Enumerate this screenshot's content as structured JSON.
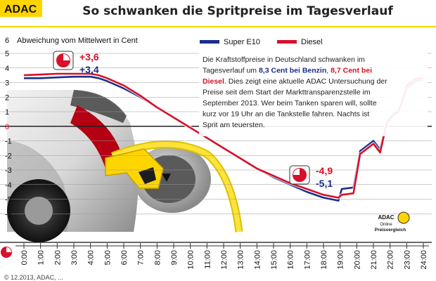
{
  "header": {
    "logo": "ADAC",
    "title": "So schwanken die Spritpreise im Tagesverlauf"
  },
  "colors": {
    "blue": "#1a2f8a",
    "red": "#d8102a",
    "yellow": "#ffd500",
    "grid": "#555555"
  },
  "legend": {
    "items": [
      {
        "name": "Super E10",
        "color": "#1a2f8a"
      },
      {
        "name": "Diesel",
        "color": "#d8102a"
      }
    ]
  },
  "info_text": {
    "lines": [
      [
        {
          "t": "Die Kraftstoffpreise in Deutschland schwanken im",
          "c": "#222222",
          "b": false
        }
      ],
      [
        {
          "t": "Tagesverlauf um ",
          "c": "#222222",
          "b": false
        },
        {
          "t": "8,3 Cent bei Benzin",
          "c": "#1a2f8a",
          "b": true
        },
        {
          "t": ", ",
          "c": "#222222",
          "b": false
        },
        {
          "t": "8,7 Cent bei",
          "c": "#d8102a",
          "b": true
        }
      ],
      [
        {
          "t": "Diesel",
          "c": "#d8102a",
          "b": true
        },
        {
          "t": ". Dies zeigt eine aktuelle ADAC Untersuchung der",
          "c": "#222222",
          "b": false
        }
      ],
      [
        {
          "t": "Preise seit dem Start der Markttransparenzstelle im",
          "c": "#222222",
          "b": false
        }
      ],
      [
        {
          "t": "September 2013. Wer beim Tanken sparen will, sollte",
          "c": "#222222",
          "b": false
        }
      ],
      [
        {
          "t": "kurz vor 19 Uhr an die Tankstelle fahren. Nachts ist",
          "c": "#222222",
          "b": false
        }
      ],
      [
        {
          "t": "Sprit am teuersten.",
          "c": "#222222",
          "b": false
        }
      ]
    ]
  },
  "callouts": [
    {
      "id": "max",
      "red_value": "+3,6",
      "blue_value": "+3,4"
    },
    {
      "id": "min",
      "red_value": "-4,9",
      "blue_value": "-5,1"
    }
  ],
  "brand_badge": {
    "line1": "ADAC",
    "line2": "Online",
    "line3": "Preisvergleich"
  },
  "footer": "© 12.2013, ADAC, ...",
  "chart_data": {
    "type": "line",
    "title": "So schwanken die Spritpreise im Tagesverlauf",
    "ylabel": "Abweichung vom Mittelwert in Cent",
    "xlabel": "",
    "ylim": [
      -6,
      6
    ],
    "yticks": [
      6,
      5,
      4,
      3,
      2,
      1,
      0,
      -1,
      -2,
      -3,
      -4,
      -5,
      -6
    ],
    "xlim": [
      0,
      24
    ],
    "xticks": [
      "0:00",
      "1:00",
      "2:00",
      "3:00",
      "4:00",
      "5:00",
      "6:00",
      "7:00",
      "8:00",
      "9:00",
      "10:00",
      "11:00",
      "12:00",
      "13:00",
      "14:00",
      "15:00",
      "16:00",
      "17:00",
      "18:00",
      "19:00",
      "20:00",
      "21:00",
      "22:00",
      "23:00",
      "24:00"
    ],
    "grid": true,
    "legend_position": "top-right",
    "series": [
      {
        "name": "Super E10",
        "color": "#1a2f8a",
        "points": [
          [
            0,
            3.3
          ],
          [
            1,
            3.3
          ],
          [
            2,
            3.35
          ],
          [
            3,
            3.4
          ],
          [
            4,
            3.4
          ],
          [
            4.5,
            3.3
          ],
          [
            5,
            3.1
          ],
          [
            6,
            2.6
          ],
          [
            7,
            2.0
          ],
          [
            8,
            1.3
          ],
          [
            9,
            0.6
          ],
          [
            10,
            -0.1
          ],
          [
            11,
            -0.8
          ],
          [
            12,
            -1.5
          ],
          [
            13,
            -2.2
          ],
          [
            14,
            -2.9
          ],
          [
            15,
            -3.5
          ],
          [
            16,
            -4.0
          ],
          [
            17,
            -4.5
          ],
          [
            18,
            -4.9
          ],
          [
            18.9,
            -5.1
          ],
          [
            19.1,
            -4.3
          ],
          [
            19.8,
            -4.2
          ],
          [
            20.2,
            -1.7
          ],
          [
            21,
            -1.0
          ],
          [
            21.4,
            -1.6
          ],
          [
            21.8,
            0.3
          ],
          [
            22.2,
            0.9
          ],
          [
            22.5,
            1.0
          ],
          [
            22.9,
            2.2
          ],
          [
            23,
            2.6
          ],
          [
            23.5,
            3.1
          ],
          [
            24,
            3.2
          ]
        ]
      },
      {
        "name": "Diesel",
        "color": "#d8102a",
        "points": [
          [
            0,
            3.5
          ],
          [
            1,
            3.55
          ],
          [
            2,
            3.6
          ],
          [
            3,
            3.6
          ],
          [
            4,
            3.6
          ],
          [
            4.5,
            3.5
          ],
          [
            5,
            3.3
          ],
          [
            6,
            2.8
          ],
          [
            7,
            2.1
          ],
          [
            8,
            1.3
          ],
          [
            9,
            0.6
          ],
          [
            10,
            -0.1
          ],
          [
            11,
            -0.8
          ],
          [
            12,
            -1.5
          ],
          [
            13,
            -2.2
          ],
          [
            14,
            -2.9
          ],
          [
            15,
            -3.4
          ],
          [
            16,
            -3.9
          ],
          [
            17,
            -4.3
          ],
          [
            18,
            -4.7
          ],
          [
            18.9,
            -4.9
          ],
          [
            19.1,
            -4.7
          ],
          [
            19.8,
            -4.6
          ],
          [
            20.2,
            -1.9
          ],
          [
            21,
            -1.2
          ],
          [
            21.4,
            -1.8
          ],
          [
            21.8,
            0.2
          ],
          [
            22.2,
            0.8
          ],
          [
            22.5,
            1.0
          ],
          [
            22.9,
            2.3
          ],
          [
            23,
            2.8
          ],
          [
            23.5,
            3.25
          ],
          [
            24,
            3.3
          ]
        ]
      }
    ]
  }
}
